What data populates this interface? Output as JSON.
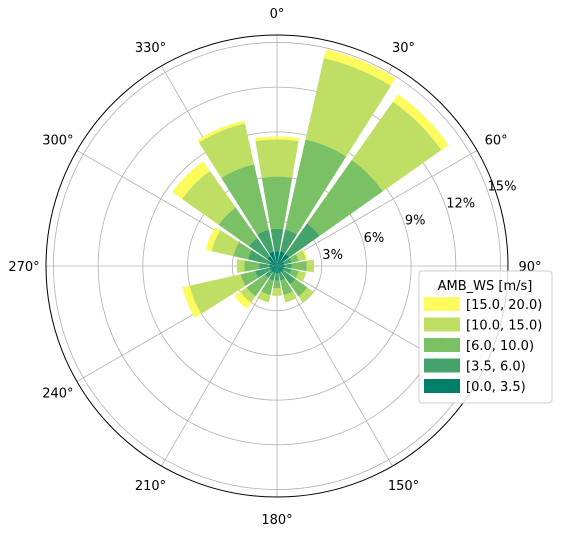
{
  "chart_data": {
    "type": "windrose",
    "direction_tick_labels": [
      "0°",
      "30°",
      "60°",
      "90°",
      "150°",
      "180°",
      "210°",
      "240°",
      "270°",
      "300°",
      "330°"
    ],
    "radial_tick_labels": [
      "3%",
      "6%",
      "9%",
      "12%",
      "15%"
    ],
    "radial_ticks": [
      3,
      6,
      9,
      12,
      15
    ],
    "rmax": 15.5,
    "legend_title": "AMB_WS [m/s]",
    "legend_placement": "right",
    "grid": true,
    "sector_directions": [
      0,
      22.5,
      45,
      67.5,
      90,
      112.5,
      135,
      157.5,
      180,
      202.5,
      225,
      247.5,
      270,
      292.5,
      315,
      337.5
    ],
    "series": [
      {
        "name": "[0.0, 3.5)",
        "color": "#00806a",
        "values": [
          1.0,
          1.0,
          1.0,
          0.5,
          0.5,
          0.5,
          0.5,
          0.5,
          0.5,
          0.5,
          0.5,
          0.5,
          0.5,
          0.5,
          0.8,
          1.0
        ]
      },
      {
        "name": "[3.5, 6.0)",
        "color": "#44a36b",
        "values": [
          1.5,
          1.5,
          2.5,
          0.5,
          0.5,
          0.5,
          1.0,
          0.5,
          0.5,
          0.5,
          0.5,
          1.0,
          0.7,
          1.5,
          1.5,
          1.5
        ]
      },
      {
        "name": "[6.0, 10.0)",
        "color": "#7ac065",
        "values": [
          3.5,
          6.2,
          5.2,
          0.5,
          1.0,
          0.5,
          1.0,
          1.0,
          0.5,
          1.0,
          1.5,
          1.0,
          1.0,
          1.0,
          2.5,
          4.5
        ]
      },
      {
        "name": "[10.0, 15.0)",
        "color": "#bfdf64",
        "values": [
          2.5,
          5.6,
          4.8,
          0.5,
          0.5,
          0.5,
          0.5,
          0.5,
          0.5,
          0.5,
          0.5,
          3.5,
          0.5,
          1.5,
          3.0,
          2.8
        ]
      },
      {
        "name": "[15.0, 20.0)",
        "color": "#fefb5c",
        "values": [
          0.2,
          0.6,
          0.6,
          0.1,
          0.0,
          0.0,
          0.0,
          0.0,
          0.0,
          0.0,
          0.5,
          0.5,
          0.0,
          0.4,
          0.8,
          0.2
        ]
      }
    ]
  }
}
